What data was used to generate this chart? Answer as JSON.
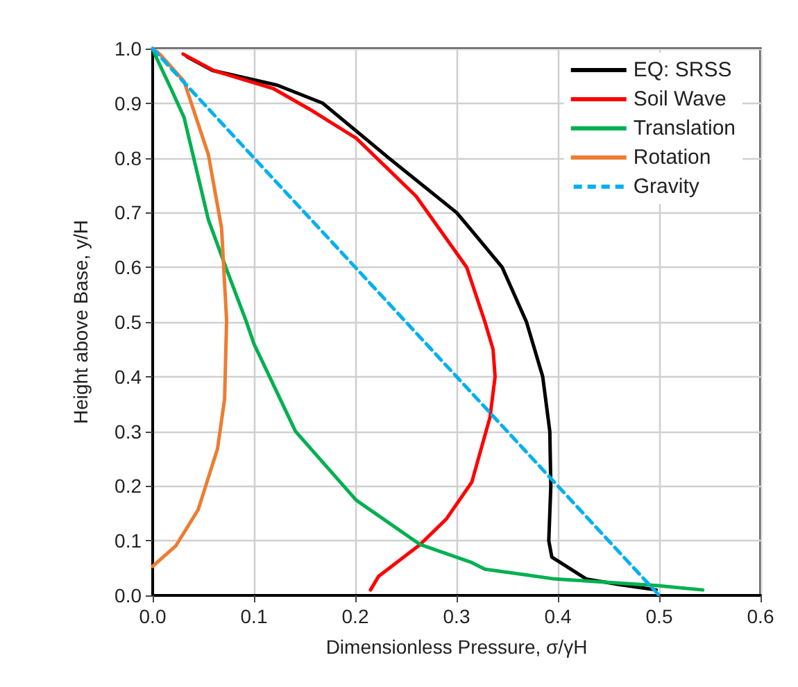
{
  "chart_data": {
    "type": "line",
    "xlabel": "Dimensionless Pressure, σ/γH",
    "ylabel": "Height above Base, y/H",
    "xlim": [
      0,
      0.6
    ],
    "xticks": [
      {
        "value": 0,
        "label": "0.0"
      },
      0.1,
      0.2,
      0.3,
      0.4,
      0.5,
      0.6
    ],
    "ylim": [
      0,
      1
    ],
    "yticks": [
      {
        "value": 0,
        "label": "0.0"
      },
      0.1,
      0.2,
      0.3,
      0.4,
      0.5,
      0.6,
      0.7,
      0.8,
      0.9,
      {
        "value": 1,
        "label": "1.0"
      }
    ],
    "grid": true,
    "legend": "top right",
    "marker": "none",
    "series": [
      {
        "name": "EQ: SRSS",
        "color": "#000000",
        "line_style": "solid",
        "x": [
          0.034,
          0.059,
          0.123,
          0.168,
          0.233,
          0.3,
          0.315,
          0.345,
          0.369,
          0.385,
          0.392,
          0.393,
          0.391,
          0.394,
          0.406,
          0.428,
          0.46,
          0.497
        ],
        "values": [
          0.985,
          0.96,
          0.933,
          0.9,
          0.8,
          0.7,
          0.667,
          0.6,
          0.5,
          0.4,
          0.3,
          0.2,
          0.1,
          0.07,
          0.056,
          0.03,
          0.02,
          0.01
        ]
      },
      {
        "name": "Soil Wave",
        "color": "#ff0000",
        "line_style": "solid",
        "x": [
          0.03,
          0.06,
          0.119,
          0.155,
          0.201,
          0.26,
          0.31,
          0.328,
          0.336,
          0.338,
          0.333,
          0.315,
          0.29,
          0.264,
          0.223,
          0.215
        ],
        "values": [
          0.99,
          0.96,
          0.927,
          0.889,
          0.836,
          0.73,
          0.6,
          0.5,
          0.45,
          0.4,
          0.326,
          0.207,
          0.14,
          0.093,
          0.035,
          0.01
        ]
      },
      {
        "name": "Translation",
        "color": "#00b050",
        "line_style": "solid",
        "x": [
          0,
          0.004,
          0.018,
          0.031,
          0.055,
          0.073,
          0.092,
          0.1,
          0.141,
          0.201,
          0.264,
          0.315,
          0.328,
          0.397,
          0.497,
          0.543
        ],
        "values": [
          1,
          0.982,
          0.927,
          0.874,
          0.687,
          0.596,
          0.503,
          0.46,
          0.3,
          0.174,
          0.093,
          0.06,
          0.048,
          0.03,
          0.018,
          0.01
        ]
      },
      {
        "name": "Rotation",
        "color": "#ed7d31",
        "line_style": "solid",
        "x": [
          0,
          0.007,
          0.031,
          0.055,
          0.068,
          0.073,
          0.071,
          0.064,
          0.045,
          0.023,
          0
        ],
        "values": [
          1,
          0.99,
          0.94,
          0.806,
          0.672,
          0.503,
          0.359,
          0.268,
          0.157,
          0.091,
          0.053
        ]
      },
      {
        "name": "Gravity",
        "color": "#00b0f0",
        "line_style": "dashed",
        "x": [
          0,
          0.5
        ],
        "values": [
          1,
          0
        ]
      }
    ]
  }
}
